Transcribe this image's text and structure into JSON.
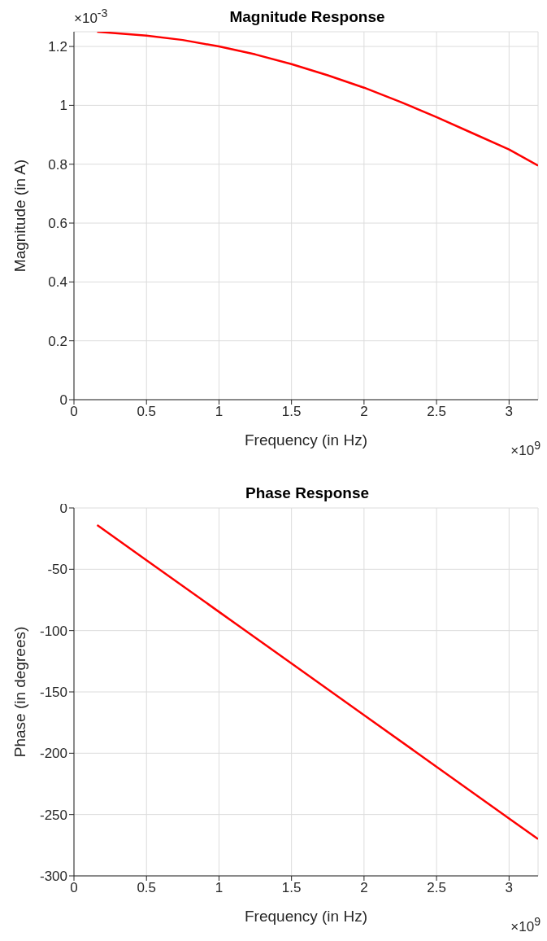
{
  "chart_data": [
    {
      "type": "line",
      "title": "Magnitude Response",
      "xlabel": "Frequency (in Hz)",
      "ylabel": "Magnitude (in A)",
      "annotations": [
        "×10$^{9}$",
        "×10$^{-3}$"
      ],
      "x": [
        0.16,
        0.5,
        0.75,
        1,
        1.25,
        1.5,
        1.75,
        2,
        2.25,
        2.5,
        2.75,
        3,
        3.2
      ],
      "series": [
        {
          "color": "#ff0000",
          "values": [
            1.25,
            1.237,
            1.222,
            1.2,
            1.173,
            1.14,
            1.102,
            1.06,
            1.012,
            0.96,
            0.905,
            0.85,
            0.795
          ]
        }
      ],
      "xlim": [
        0,
        3.2
      ],
      "xticks": [
        0,
        0.5,
        1,
        1.5,
        2,
        2.5,
        3
      ],
      "ylim": [
        0,
        1.25
      ],
      "yticks": [
        0,
        0.2,
        0.4,
        0.6,
        0.8,
        1,
        1.2
      ],
      "grid": true,
      "marker": "none",
      "line_style": "solid"
    },
    {
      "type": "line",
      "title": "Phase Response",
      "xlabel": "Frequency (in Hz)",
      "ylabel": "Phase (in degrees)",
      "annotations": [
        "×10$^{9}$"
      ],
      "x": [
        0.16,
        0.5,
        1,
        1.5,
        2,
        2.5,
        3,
        3.2
      ],
      "series": [
        {
          "color": "#ff0000",
          "values": [
            -14,
            -42.6,
            -84.7,
            -126.8,
            -168.9,
            -211,
            -253.2,
            -270
          ]
        }
      ],
      "xlim": [
        0,
        3.2
      ],
      "xticks": [
        0,
        0.5,
        1,
        1.5,
        2,
        2.5,
        3
      ],
      "ylim": [
        -300,
        0
      ],
      "yticks": [
        -300,
        -250,
        -200,
        -150,
        -100,
        -50,
        0
      ],
      "grid": true,
      "marker": "none",
      "line_style": "solid"
    }
  ]
}
